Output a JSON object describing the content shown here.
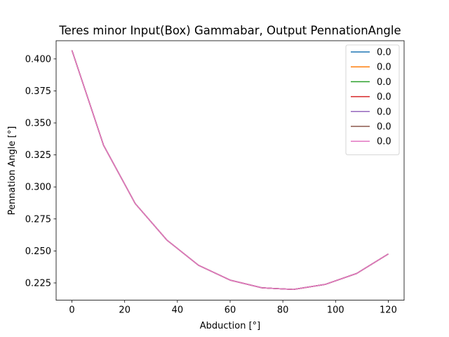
{
  "chart_data": {
    "type": "line",
    "title": "Teres minor Input(Box) Gammabar, Output PennationAngle",
    "xlabel": "Abduction [°]",
    "ylabel": "Pennation Angle [°]",
    "xlim": [
      -6,
      126
    ],
    "ylim": [
      0.2115,
      0.4142
    ],
    "xticks": [
      0,
      20,
      40,
      60,
      80,
      100,
      120
    ],
    "yticks": [
      0.225,
      0.25,
      0.275,
      0.3,
      0.325,
      0.35,
      0.375,
      0.4
    ],
    "ytick_labels": [
      "0.225",
      "0.250",
      "0.275",
      "0.300",
      "0.325",
      "0.350",
      "0.375",
      "0.400"
    ],
    "grid": false,
    "legend_position": "top-right",
    "x": [
      0,
      12,
      24,
      36,
      48,
      60,
      72,
      84,
      96,
      108,
      120
    ],
    "series": [
      {
        "name": "0.0",
        "color": "#1f77b4",
        "values": [
          0.4067,
          0.3325,
          0.287,
          0.2585,
          0.2388,
          0.2272,
          0.2212,
          0.2199,
          0.2238,
          0.2324,
          0.2476
        ]
      },
      {
        "name": "0.0",
        "color": "#ff7f0e",
        "values": [
          0.4067,
          0.3325,
          0.287,
          0.2585,
          0.2388,
          0.2272,
          0.2212,
          0.2199,
          0.2238,
          0.2324,
          0.2476
        ]
      },
      {
        "name": "0.0",
        "color": "#2ca02c",
        "values": [
          0.4067,
          0.3325,
          0.287,
          0.2585,
          0.2388,
          0.2272,
          0.2212,
          0.2199,
          0.2238,
          0.2324,
          0.2476
        ]
      },
      {
        "name": "0.0",
        "color": "#d62728",
        "values": [
          0.4067,
          0.3325,
          0.287,
          0.2585,
          0.2388,
          0.2272,
          0.2212,
          0.2199,
          0.2238,
          0.2324,
          0.2476
        ]
      },
      {
        "name": "0.0",
        "color": "#9467bd",
        "values": [
          0.4067,
          0.3325,
          0.287,
          0.2585,
          0.2388,
          0.2272,
          0.2212,
          0.2199,
          0.2238,
          0.2324,
          0.2476
        ]
      },
      {
        "name": "0.0",
        "color": "#8c564b",
        "values": [
          0.4067,
          0.3325,
          0.287,
          0.2585,
          0.2388,
          0.2272,
          0.2212,
          0.2199,
          0.2238,
          0.2324,
          0.2476
        ]
      },
      {
        "name": "0.0",
        "color": "#e377c2",
        "values": [
          0.4067,
          0.3325,
          0.287,
          0.2585,
          0.2388,
          0.2272,
          0.2212,
          0.2199,
          0.2238,
          0.2324,
          0.2476
        ]
      }
    ]
  }
}
